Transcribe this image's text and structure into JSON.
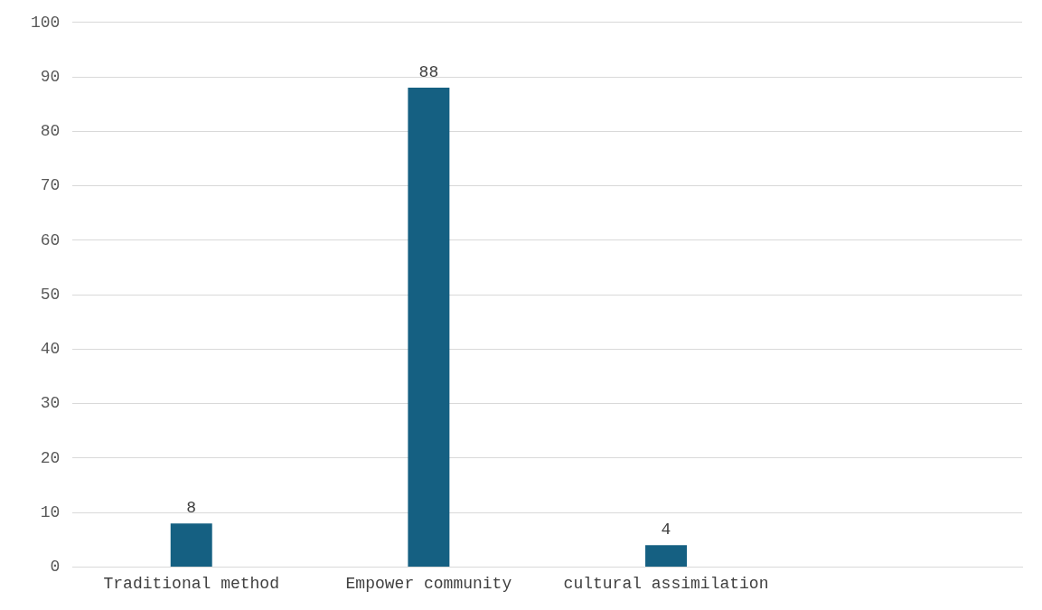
{
  "chart_data": {
    "type": "bar",
    "categories": [
      "Traditional method",
      "Empower community",
      "cultural assimilation",
      null
    ],
    "values": [
      8,
      88,
      4,
      null
    ],
    "color": "#156082",
    "ylim": [
      0,
      100
    ],
    "yticks": [
      0,
      10,
      20,
      30,
      40,
      50,
      60,
      70,
      80,
      90,
      100
    ],
    "grid": "y",
    "data_labels": true,
    "legend": false
  }
}
